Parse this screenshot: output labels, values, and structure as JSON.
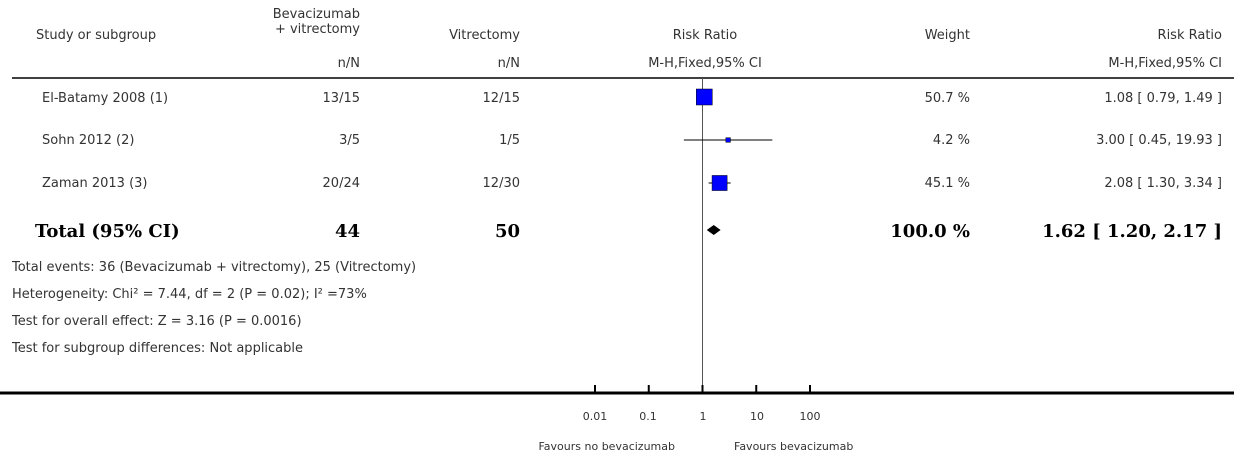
{
  "header": {
    "study_col": "Study or subgroup",
    "treat_col": "Bevacizumab\n+ vitrectomy",
    "ctrl_col": "Vitrectomy",
    "rr_col": "Risk Ratio",
    "weight_col": "Weight",
    "rr_col2": "Risk Ratio",
    "treat_sub": "n/N",
    "ctrl_sub": "n/N",
    "rr_sub": "M-H,Fixed,95% CI",
    "rr_sub2": "M-H,Fixed,95% CI"
  },
  "total": {
    "label": "Total (95% CI)",
    "treat": "44",
    "ctrl": "50",
    "weight": "100.0 %",
    "ci": "1.62 [ 1.20, 2.17 ]"
  },
  "footnotes": {
    "events": "Total events: 36 (Bevacizumab + vitrectomy), 25 (Vitrectomy)",
    "heterogeneity": "Heterogeneity: Chi² = 7.44, df = 2 (P = 0.02); I² =73%",
    "overall": "Test for overall effect: Z = 3.16 (P = 0.0016)",
    "subgroup": "Test for subgroup differences: Not applicable"
  },
  "axis": {
    "ticks": [
      "0.01",
      "0.1",
      "1",
      "10",
      "100"
    ],
    "favours_left": "Favours no bevacizumab",
    "favours_right": "Favours bevacizumab"
  },
  "colors": {
    "marker": "#0000ff",
    "diamond": "#000000",
    "line": "#000000"
  },
  "chart_data": {
    "type": "forest",
    "x_scale": "log",
    "xlim": [
      0.01,
      100
    ],
    "null_value": 1,
    "studies": [
      {
        "name": "El-Batamy 2008 (1)",
        "treat": "13/15",
        "ctrl": "12/15",
        "weight": "50.7 %",
        "ci_text": "1.08 [ 0.79, 1.49 ]",
        "rr": 1.08,
        "lo": 0.79,
        "hi": 1.49,
        "w": 50.7
      },
      {
        "name": "Sohn 2012 (2)",
        "treat": "3/5",
        "ctrl": "1/5",
        "weight": "4.2 %",
        "ci_text": "3.00 [ 0.45, 19.93 ]",
        "rr": 3.0,
        "lo": 0.45,
        "hi": 19.93,
        "w": 4.2
      },
      {
        "name": "Zaman 2013 (3)",
        "treat": "20/24",
        "ctrl": "12/30",
        "weight": "45.1 %",
        "ci_text": "2.08 [ 1.30, 3.34 ]",
        "rr": 2.08,
        "lo": 1.3,
        "hi": 3.34,
        "w": 45.1
      }
    ],
    "pooled": {
      "rr": 1.62,
      "lo": 1.2,
      "hi": 2.17
    }
  }
}
